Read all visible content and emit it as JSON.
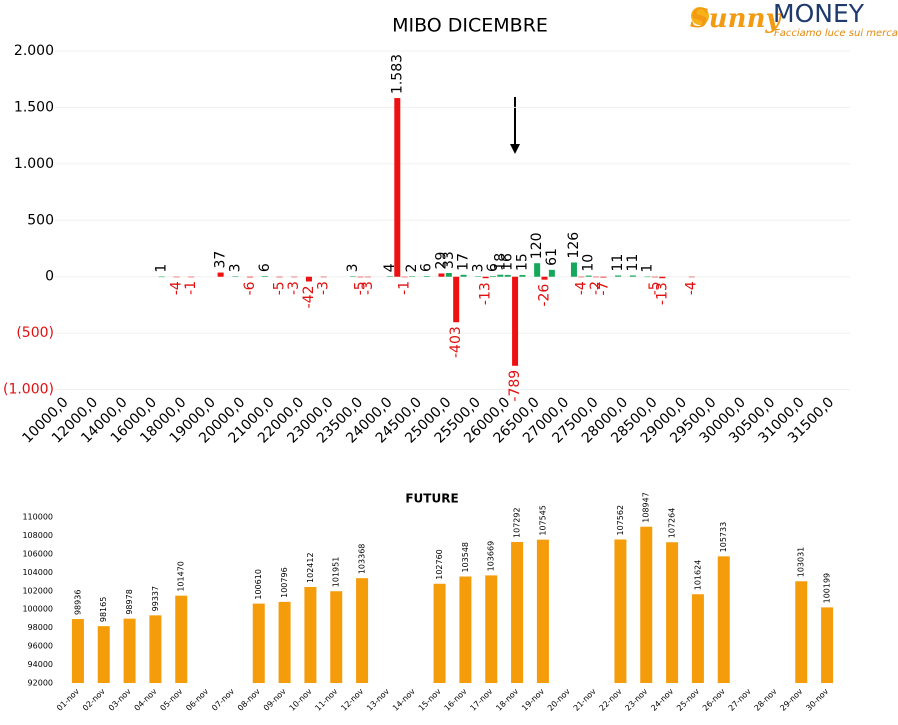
{
  "logo": {
    "brand1": "Sunny",
    "brand2": "MONEY",
    "tagline": "Facciamo luce sui mercati"
  },
  "chart_data": [
    {
      "type": "bar",
      "title": "MIBO DICEMBRE",
      "grid": true,
      "negative_color": "#e01010",
      "ylim": [
        -1000,
        2000
      ],
      "yticks": [
        {
          "value": -1000,
          "label": "(1.000)"
        },
        {
          "value": -500,
          "label": "(500)"
        },
        0,
        500,
        {
          "value": 1000,
          "label": "1.000"
        },
        {
          "value": 1500,
          "label": "1.500"
        },
        {
          "value": 2000,
          "label": "2.000"
        }
      ],
      "categories": [
        null,
        "10000,0",
        null,
        null,
        null,
        "12000,0",
        null,
        null,
        null,
        "14000,0",
        null,
        null,
        null,
        "16000,0",
        null,
        null,
        null,
        "18000,0",
        null,
        null,
        null,
        "19000,0",
        null,
        null,
        null,
        "20000,0",
        null,
        null,
        null,
        "21000,0",
        null,
        null,
        null,
        "22000,0",
        null,
        null,
        null,
        "23000,0",
        null,
        null,
        null,
        "23500,0",
        null,
        null,
        null,
        "24000,0",
        null,
        null,
        null,
        "24500,0",
        null,
        null,
        null,
        "25000,0",
        null,
        null,
        null,
        "25500,0",
        null,
        null,
        null,
        "26000,0",
        null,
        null,
        null,
        "26500,0",
        null,
        null,
        null,
        "27000,0",
        null,
        null,
        null,
        "27500,0",
        null,
        null,
        null,
        "28000,0",
        null,
        null,
        null,
        "28500,0",
        null,
        null,
        null,
        "29000,0",
        null,
        null,
        null,
        "29500,0",
        null,
        null,
        null,
        "30000,0",
        null,
        null,
        null,
        "30500,0",
        null,
        null,
        null,
        "31000,0",
        null,
        null,
        null,
        "31500,0",
        null,
        null
      ],
      "series": [
        {
          "color": "#ee1111",
          "values": [
            null,
            null,
            null,
            null,
            null,
            null,
            null,
            null,
            null,
            null,
            null,
            null,
            null,
            null,
            null,
            null,
            -4,
            null,
            -1,
            null,
            null,
            null,
            37,
            null,
            null,
            null,
            -6,
            null,
            null,
            null,
            -5,
            null,
            -3,
            null,
            -42,
            null,
            -3,
            null,
            null,
            null,
            null,
            -5,
            -3,
            null,
            null,
            null,
            1583,
            -1,
            null,
            null,
            null,
            null,
            29,
            null,
            -403,
            null,
            null,
            null,
            -13,
            null,
            null,
            null,
            -789,
            null,
            null,
            null,
            -26,
            null,
            null,
            null,
            null,
            -4,
            null,
            -2,
            -7,
            null,
            null,
            null,
            null,
            null,
            null,
            -5,
            -13,
            null,
            null,
            null,
            -4,
            null,
            null,
            null,
            null,
            null,
            null,
            null,
            null,
            null,
            null,
            null,
            null,
            null,
            null,
            null,
            null,
            null,
            null,
            null,
            null,
            null
          ],
          "value_labels": [
            null,
            null,
            null,
            null,
            null,
            null,
            null,
            null,
            null,
            null,
            null,
            null,
            null,
            null,
            null,
            null,
            "-4",
            null,
            "-1",
            null,
            null,
            null,
            "37",
            null,
            null,
            null,
            "-6",
            null,
            null,
            null,
            "-5",
            null,
            "-3",
            null,
            "-42",
            null,
            "-3",
            null,
            null,
            null,
            null,
            "-5",
            "-3",
            null,
            null,
            null,
            "1.583",
            "-1",
            null,
            null,
            null,
            null,
            "29",
            null,
            "-403",
            null,
            null,
            null,
            "-13",
            null,
            null,
            null,
            "-789",
            null,
            null,
            null,
            "-26",
            null,
            null,
            null,
            null,
            "-4",
            null,
            "-2",
            "-7",
            null,
            null,
            null,
            null,
            null,
            null,
            "-5",
            "-13",
            null,
            null,
            null,
            "-4",
            null,
            null,
            null,
            null,
            null,
            null,
            null,
            null,
            null,
            null,
            null,
            null,
            null,
            null,
            null,
            null,
            null,
            null,
            null,
            null,
            null
          ]
        },
        {
          "color": "#16a85a",
          "values": [
            null,
            null,
            null,
            null,
            null,
            null,
            null,
            null,
            null,
            null,
            null,
            null,
            null,
            null,
            1,
            null,
            null,
            null,
            null,
            null,
            null,
            null,
            null,
            null,
            3,
            null,
            null,
            null,
            6,
            null,
            null,
            null,
            null,
            null,
            null,
            null,
            null,
            null,
            null,
            null,
            3,
            null,
            null,
            null,
            null,
            4,
            null,
            null,
            2,
            null,
            6,
            null,
            null,
            33,
            null,
            17,
            null,
            3,
            null,
            6,
            18,
            16,
            null,
            15,
            null,
            120,
            null,
            61,
            null,
            null,
            126,
            null,
            10,
            null,
            null,
            null,
            11,
            null,
            11,
            null,
            1,
            null,
            null,
            null,
            null,
            null,
            null,
            null,
            null,
            null,
            null,
            null,
            null,
            null,
            null,
            null,
            null,
            null,
            null,
            null,
            null,
            null,
            null,
            null,
            null,
            null,
            null,
            null
          ]
        }
      ]
    },
    {
      "type": "bar",
      "title": "FUTURE",
      "grid": false,
      "color": "#f59c0b",
      "ylim": [
        92000,
        110000
      ],
      "yticks": [
        92000,
        94000,
        96000,
        98000,
        100000,
        102000,
        104000,
        106000,
        108000,
        110000
      ],
      "categories": [
        "01-nov",
        "02-nov",
        "03-nov",
        "04-nov",
        "05-nov",
        "06-nov",
        "07-nov",
        "08-nov",
        "09-nov",
        "10-nov",
        "11-nov",
        "12-nov",
        "13-nov",
        "14-nov",
        "15-nov",
        "16-nov",
        "17-nov",
        "18-nov",
        "19-nov",
        "20-nov",
        "21-nov",
        "22-nov",
        "23-nov",
        "24-nov",
        "25-nov",
        "26-nov",
        "27-nov",
        "28-nov",
        "29-nov",
        "30-nov"
      ],
      "values": [
        98936,
        98165,
        98978,
        99337,
        101470,
        null,
        null,
        100610,
        100796,
        102412,
        101951,
        103368,
        null,
        null,
        102760,
        103548,
        103669,
        107292,
        107545,
        null,
        null,
        107562,
        108947,
        107264,
        101624,
        105733,
        null,
        null,
        103031,
        100199
      ]
    }
  ]
}
